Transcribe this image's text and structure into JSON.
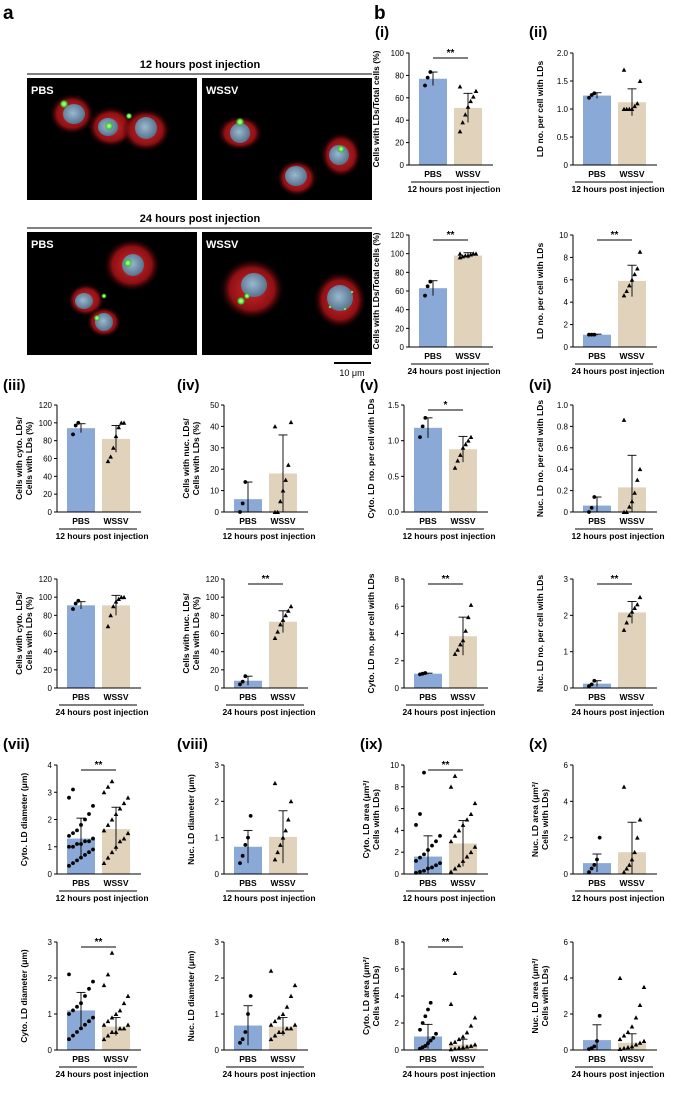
{
  "figure": {
    "label_a": "a",
    "label_b": "b",
    "scale_bar": "10 μm"
  },
  "micrographs": [
    {
      "title": "12 hours post injection",
      "panels": [
        "PBS",
        "WSSV"
      ]
    },
    {
      "title": "24 hours post injection",
      "panels": [
        "PBS",
        "WSSV"
      ]
    }
  ],
  "colors": {
    "pbs": "#8ba9d6",
    "wssv": "#e1d3bb",
    "cell": "#b41418",
    "nucleus": "#7a9ab6",
    "ld": "#6cf55a"
  },
  "chart_data": [
    {
      "id": "i-top",
      "panel": "(i)",
      "type": "bar",
      "ylabel": "Cells with LDs/Total cells (%)",
      "ylim": [
        0,
        100
      ],
      "yticks": [
        0,
        20,
        40,
        60,
        80,
        100
      ],
      "categories": [
        "PBS",
        "WSSV"
      ],
      "values": [
        77,
        51
      ],
      "sd": [
        6,
        13
      ],
      "points": [
        [
          71,
          78,
          83
        ],
        [
          30,
          38,
          45,
          52,
          57,
          61,
          66,
          70
        ]
      ],
      "sig": "**",
      "condition": "12 hours post injection"
    },
    {
      "id": "i-bot",
      "panel": "",
      "type": "bar",
      "ylabel": "Cells with LDs/Total cells (%)",
      "ylim": [
        0,
        120
      ],
      "yticks": [
        0,
        20,
        40,
        60,
        80,
        100,
        120
      ],
      "categories": [
        "PBS",
        "WSSV"
      ],
      "values": [
        63,
        98
      ],
      "sd": [
        8,
        3
      ],
      "points": [
        [
          55,
          65,
          70
        ],
        [
          96,
          97,
          98,
          98,
          99,
          100,
          100,
          100
        ]
      ],
      "sig": "**",
      "condition": "24 hours post injection"
    },
    {
      "id": "ii-top",
      "panel": "(ii)",
      "type": "bar",
      "ylabel": "LD no. per cell with LDs",
      "ylim": [
        0,
        2.0
      ],
      "yticks": [
        0,
        0.5,
        1.0,
        1.5,
        2.0
      ],
      "ytickLabels": [
        "0",
        "0.5",
        "1.0",
        "1.5",
        "2.0"
      ],
      "categories": [
        "PBS",
        "WSSV"
      ],
      "values": [
        1.24,
        1.12
      ],
      "sd": [
        0.05,
        0.24
      ],
      "points": [
        [
          1.2,
          1.25,
          1.28
        ],
        [
          1.0,
          1.0,
          1.0,
          1.0,
          1.05,
          1.1,
          1.5,
          1.7
        ]
      ],
      "sig": "",
      "condition": "12 hours post injection"
    },
    {
      "id": "ii-bot",
      "panel": "",
      "type": "bar",
      "ylabel": "LD no. per cell with LDs",
      "ylim": [
        0,
        10
      ],
      "yticks": [
        0,
        2,
        4,
        6,
        8,
        10
      ],
      "categories": [
        "PBS",
        "WSSV"
      ],
      "values": [
        1.1,
        5.9
      ],
      "sd": [
        0.05,
        1.4
      ],
      "points": [
        [
          1.1,
          1.1,
          1.1
        ],
        [
          4.6,
          5.0,
          5.5,
          6.0,
          6.5,
          7.0,
          8.5
        ]
      ],
      "sig": "**",
      "condition": "24 hours post injection"
    },
    {
      "id": "iii-top",
      "panel": "(iii)",
      "type": "bar",
      "ylabel": "Cells with cyto. LDs/Cells with LDs (%)",
      "ylim": [
        0,
        120
      ],
      "yticks": [
        0,
        20,
        40,
        60,
        80,
        100,
        120
      ],
      "categories": [
        "PBS",
        "WSSV"
      ],
      "values": [
        94,
        82
      ],
      "sd": [
        5,
        15
      ],
      "points": [
        [
          87,
          97,
          100
        ],
        [
          57,
          62,
          72,
          85,
          95,
          100,
          100
        ]
      ],
      "sig": "",
      "condition": "12 hours post injection"
    },
    {
      "id": "iii-bot",
      "panel": "",
      "type": "bar",
      "ylabel": "Cells with cyto. LDs/Cells with LDs (%)",
      "ylim": [
        0,
        120
      ],
      "yticks": [
        0,
        20,
        40,
        60,
        80,
        100,
        120
      ],
      "categories": [
        "PBS",
        "WSSV"
      ],
      "values": [
        91,
        91
      ],
      "sd": [
        4,
        11
      ],
      "points": [
        [
          87,
          93,
          96
        ],
        [
          68,
          80,
          90,
          95,
          98,
          100,
          100
        ]
      ],
      "sig": "",
      "condition": "24 hours post injection"
    },
    {
      "id": "iv-top",
      "panel": "(iv)",
      "type": "bar",
      "ylabel": "Cells with nuc. LDs/Cells with LDs (%)",
      "ylim": [
        0,
        50
      ],
      "yticks": [
        0,
        10,
        20,
        30,
        40,
        50
      ],
      "categories": [
        "PBS",
        "WSSV"
      ],
      "values": [
        6,
        18
      ],
      "sd": [
        8,
        18
      ],
      "points": [
        [
          0,
          4,
          14
        ],
        [
          0,
          0,
          5,
          10,
          15,
          22,
          42,
          40
        ]
      ],
      "sig": "",
      "condition": "12 hours post injection"
    },
    {
      "id": "iv-bot",
      "panel": "",
      "type": "bar",
      "ylabel": "Cells with nuc. LDs/Cells with LDs (%)",
      "ylim": [
        0,
        120
      ],
      "yticks": [
        0,
        20,
        40,
        60,
        80,
        100,
        120
      ],
      "categories": [
        "PBS",
        "WSSV"
      ],
      "values": [
        8,
        73
      ],
      "sd": [
        5,
        12
      ],
      "points": [
        [
          4,
          7,
          13
        ],
        [
          55,
          62,
          70,
          75,
          80,
          85,
          90
        ]
      ],
      "sig": "**",
      "condition": "24 hours post injection"
    },
    {
      "id": "v-top",
      "panel": "(v)",
      "type": "bar",
      "ylabel": "Cyto. LD no. per cell with LDs",
      "ylim": [
        0,
        1.5
      ],
      "yticks": [
        0,
        0.5,
        1.0,
        1.5
      ],
      "ytickLabels": [
        "0.0",
        "0.5",
        "1.0",
        "1.5"
      ],
      "categories": [
        "PBS",
        "WSSV"
      ],
      "values": [
        1.18,
        0.88
      ],
      "sd": [
        0.14,
        0.18
      ],
      "points": [
        [
          1.05,
          1.2,
          1.32
        ],
        [
          0.62,
          0.72,
          0.8,
          0.9,
          0.95,
          1.0,
          1.05
        ]
      ],
      "sig": "*",
      "condition": "12 hours post injection"
    },
    {
      "id": "v-bot",
      "panel": "",
      "type": "bar",
      "ylabel": "Cyto. LD no. per cell with LDs",
      "ylim": [
        0,
        8
      ],
      "yticks": [
        0,
        2,
        4,
        6,
        8
      ],
      "categories": [
        "PBS",
        "WSSV"
      ],
      "values": [
        1.05,
        3.8
      ],
      "sd": [
        0.04,
        1.4
      ],
      "points": [
        [
          1.0,
          1.05,
          1.1
        ],
        [
          2.5,
          2.8,
          3.2,
          3.5,
          4.2,
          5.2,
          6.1
        ]
      ],
      "sig": "**",
      "condition": "24 hours post injection"
    },
    {
      "id": "vi-top",
      "panel": "(vi)",
      "type": "bar",
      "ylabel": "Nuc. LD no. per cell with LDs",
      "ylim": [
        0,
        1.0
      ],
      "yticks": [
        0,
        0.2,
        0.4,
        0.6,
        0.8,
        1.0
      ],
      "ytickLabels": [
        "0",
        "0.2",
        "0.4",
        "0.6",
        "0.8",
        "1.0"
      ],
      "categories": [
        "PBS",
        "WSSV"
      ],
      "values": [
        0.06,
        0.23
      ],
      "sd": [
        0.08,
        0.3
      ],
      "points": [
        [
          0,
          0.04,
          0.14
        ],
        [
          0,
          0,
          0.05,
          0.1,
          0.18,
          0.3,
          0.4,
          0.86
        ]
      ],
      "sig": "",
      "condition": "12 hours post injection"
    },
    {
      "id": "vi-bot",
      "panel": "",
      "type": "bar",
      "ylabel": "Nuc. LD no. per cell with LDs",
      "ylim": [
        0,
        3
      ],
      "yticks": [
        0,
        1,
        2,
        3
      ],
      "categories": [
        "PBS",
        "WSSV"
      ],
      "values": [
        0.12,
        2.08
      ],
      "sd": [
        0.08,
        0.3
      ],
      "points": [
        [
          0.05,
          0.1,
          0.2
        ],
        [
          1.6,
          1.8,
          2.0,
          2.1,
          2.2,
          2.3,
          2.5
        ]
      ],
      "sig": "**",
      "condition": "24 hours post injection"
    },
    {
      "id": "vii-top",
      "panel": "(vii)",
      "type": "bar",
      "ylabel": "Cyto. LD diameter (μm)",
      "ylim": [
        0,
        4
      ],
      "yticks": [
        0,
        1,
        2,
        3,
        4
      ],
      "categories": [
        "PBS",
        "WSSV"
      ],
      "values": [
        1.3,
        1.65
      ],
      "sd": [
        0.75,
        0.8
      ],
      "points": [
        [
          0.3,
          0.4,
          0.5,
          0.6,
          0.7,
          0.8,
          0.9,
          1.0,
          1.0,
          1.1,
          1.1,
          1.2,
          1.2,
          1.3,
          1.4,
          1.5,
          1.6,
          1.8,
          2.0,
          2.2,
          2.5,
          2.8,
          3.1
        ],
        [
          0.4,
          0.6,
          0.8,
          1.0,
          1.2,
          1.3,
          1.5,
          1.6,
          1.8,
          2.0,
          2.2,
          2.4,
          2.6,
          2.8,
          3.0,
          3.2,
          3.4
        ]
      ],
      "sig": "**",
      "condition": "12 hours post injection"
    },
    {
      "id": "vii-bot",
      "panel": "",
      "type": "bar",
      "ylabel": "Cyto. LD diameter (μm)",
      "ylim": [
        0,
        3
      ],
      "yticks": [
        0,
        1,
        2,
        3
      ],
      "categories": [
        "PBS",
        "WSSV"
      ],
      "values": [
        1.1,
        0.65
      ],
      "sd": [
        0.5,
        0.25
      ],
      "points": [
        [
          0.3,
          0.4,
          0.5,
          0.6,
          0.7,
          0.8,
          0.9,
          1.0,
          1.1,
          1.2,
          1.3,
          1.5,
          1.7,
          1.9,
          2.1
        ],
        [
          0.3,
          0.4,
          0.5,
          0.5,
          0.6,
          0.6,
          0.7,
          0.7,
          0.8,
          0.9,
          1.0,
          1.1,
          1.3,
          1.5,
          1.8,
          2.1,
          2.7
        ]
      ],
      "sig": "**",
      "condition": "24 hours post injection"
    },
    {
      "id": "viii-top",
      "panel": "(viii)",
      "type": "bar",
      "ylabel": "Nuc. LD diameter (μm)",
      "ylim": [
        0,
        3
      ],
      "yticks": [
        0,
        1,
        2,
        3
      ],
      "categories": [
        "PBS",
        "WSSV"
      ],
      "values": [
        0.75,
        1.02
      ],
      "sd": [
        0.45,
        0.72
      ],
      "points": [
        [
          0.3,
          0.5,
          0.8,
          1.0,
          1.6
        ],
        [
          0.4,
          0.6,
          0.8,
          1.0,
          1.2,
          1.5,
          2.0,
          2.5
        ]
      ],
      "sig": "",
      "condition": "12 hours post injection"
    },
    {
      "id": "viii-bot",
      "panel": "",
      "type": "bar",
      "ylabel": "Nuc. LD diameter (μm)",
      "ylim": [
        0,
        3
      ],
      "yticks": [
        0,
        1,
        2,
        3
      ],
      "categories": [
        "PBS",
        "WSSV"
      ],
      "values": [
        0.68,
        0.65
      ],
      "sd": [
        0.55,
        0.25
      ],
      "points": [
        [
          0.2,
          0.3,
          0.5,
          1.0,
          1.5
        ],
        [
          0.3,
          0.4,
          0.5,
          0.5,
          0.6,
          0.6,
          0.7,
          0.7,
          0.8,
          0.9,
          1.0,
          1.2,
          1.5,
          1.8,
          2.2
        ]
      ],
      "sig": "",
      "condition": "24 hours post injection"
    },
    {
      "id": "ix-top",
      "panel": "(ix)",
      "type": "bar",
      "ylabel": "Cyto. LD area (μm²/ Cells with LDs)",
      "ylim": [
        0,
        10
      ],
      "yticks": [
        0,
        2,
        4,
        6,
        8,
        10
      ],
      "categories": [
        "PBS",
        "WSSV"
      ],
      "values": [
        1.6,
        2.8
      ],
      "sd": [
        1.9,
        2.1
      ],
      "points": [
        [
          0.1,
          0.2,
          0.3,
          0.5,
          0.6,
          0.8,
          1.0,
          1.2,
          1.5,
          1.8,
          2.2,
          2.6,
          3.0,
          3.5,
          4.5,
          5.5,
          9.3
        ],
        [
          0.2,
          0.5,
          0.8,
          1.2,
          1.6,
          2.0,
          2.5,
          3.0,
          3.5,
          4.0,
          4.5,
          5.0,
          5.5,
          6.5,
          8.0,
          9.0
        ]
      ],
      "sig": "**",
      "condition": "12 hours post injection"
    },
    {
      "id": "ix-bot",
      "panel": "",
      "type": "bar",
      "ylabel": "Cyto. LD area (μm²/ Cells with LDs)",
      "ylim": [
        0,
        8
      ],
      "yticks": [
        0,
        2,
        4,
        6,
        8
      ],
      "categories": [
        "PBS",
        "WSSV"
      ],
      "values": [
        1.0,
        0.4
      ],
      "sd": [
        0.9,
        0.4
      ],
      "points": [
        [
          0.1,
          0.2,
          0.3,
          0.5,
          0.7,
          0.9,
          1.2,
          1.5,
          2.0,
          2.5,
          3.0,
          3.5
        ],
        [
          0.05,
          0.1,
          0.15,
          0.2,
          0.25,
          0.3,
          0.4,
          0.5,
          0.6,
          0.8,
          1.0,
          1.3,
          1.8,
          2.4,
          3.4,
          5.7
        ]
      ],
      "sig": "**",
      "condition": "24 hours post injection"
    },
    {
      "id": "x-top",
      "panel": "(x)",
      "type": "bar",
      "ylabel": "Nuc. LD area (μm²/ Cells with LDs)",
      "ylim": [
        0,
        6
      ],
      "yticks": [
        0,
        2,
        4,
        6
      ],
      "categories": [
        "PBS",
        "WSSV"
      ],
      "values": [
        0.6,
        1.2
      ],
      "sd": [
        0.5,
        1.65
      ],
      "points": [
        [
          0.1,
          0.3,
          0.5,
          0.8,
          2.0
        ],
        [
          0.1,
          0.3,
          0.5,
          0.8,
          1.2,
          2.0,
          3.0,
          4.8
        ]
      ],
      "sig": "",
      "condition": "12 hours post injection"
    },
    {
      "id": "x-bot",
      "panel": "",
      "type": "bar",
      "ylabel": "Nuc. LD area (μm²/ Cells with LDs)",
      "ylim": [
        0,
        6
      ],
      "yticks": [
        0,
        2,
        4,
        6
      ],
      "categories": [
        "PBS",
        "WSSV"
      ],
      "values": [
        0.55,
        0.4
      ],
      "sd": [
        0.85,
        0.5
      ],
      "points": [
        [
          0.05,
          0.1,
          0.2,
          0.5,
          1.9
        ],
        [
          0.05,
          0.1,
          0.15,
          0.2,
          0.3,
          0.4,
          0.5,
          0.6,
          0.8,
          1.0,
          1.3,
          1.8,
          2.5,
          3.5,
          4.0
        ]
      ],
      "sig": "",
      "condition": "24 hours post injection"
    }
  ]
}
